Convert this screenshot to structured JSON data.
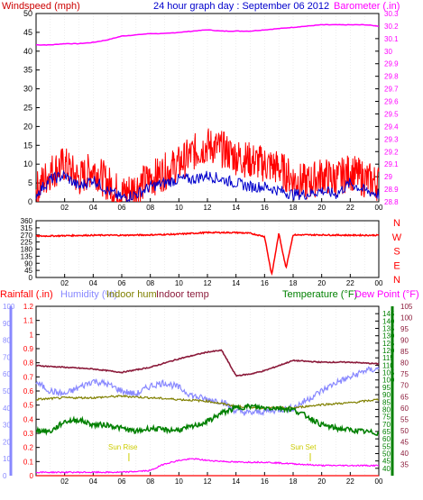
{
  "chart_data": [
    {
      "type": "line",
      "title": "24 hour graph day : September 06 2012",
      "left_axis": {
        "label": "Windspeed (mph)",
        "range": [
          0,
          50
        ],
        "ticks": [
          "0",
          "5",
          "10",
          "15",
          "20",
          "25",
          "30",
          "35",
          "40",
          "45",
          "50"
        ],
        "color": "#ff0000"
      },
      "right_axis": {
        "label": "Barometer (.in)",
        "range": [
          28.8,
          30.3
        ],
        "ticks": [
          "28.8",
          "28.9",
          "29",
          "29.1",
          "29.2",
          "29.3",
          "29.4",
          "29.5",
          "29.6",
          "29.7",
          "29.8",
          "29.9",
          "30",
          "30.1",
          "30.2",
          "30.3"
        ],
        "color": "#ff00ff"
      },
      "x_ticks": [
        "02",
        "04",
        "06",
        "08",
        "10",
        "12",
        "14",
        "16",
        "18",
        "20",
        "22",
        "00"
      ],
      "series": [
        {
          "name": "Windspeed",
          "color": "#ff0000",
          "axis": "left",
          "x": [
            0,
            1,
            2,
            3,
            4,
            5,
            6,
            7,
            8,
            9,
            10,
            11,
            12,
            13,
            14,
            15,
            16,
            17,
            18,
            19,
            20,
            21,
            22,
            23,
            24
          ],
          "values": [
            3,
            8,
            10,
            6,
            9,
            5,
            2,
            4,
            6,
            8,
            10,
            13,
            15,
            14,
            12,
            11,
            10,
            9,
            6,
            5,
            7,
            6,
            8,
            6,
            5
          ]
        },
        {
          "color": "#0000cc",
          "axis": "left",
          "x": [
            0,
            1,
            2,
            3,
            4,
            5,
            6,
            7,
            8,
            9,
            10,
            11,
            12,
            13,
            14,
            15,
            16,
            17,
            18,
            19,
            20,
            21,
            22,
            23,
            24
          ],
          "values": [
            2,
            6,
            7,
            4,
            6,
            3,
            1,
            2,
            4,
            5,
            6,
            6,
            7,
            6,
            5,
            4,
            4,
            3,
            2,
            2,
            3,
            2,
            5,
            3,
            2
          ]
        },
        {
          "name": "Barometer",
          "color": "#ff00ff",
          "axis": "right",
          "x": [
            0,
            1,
            2,
            3,
            4,
            5,
            6,
            7,
            8,
            9,
            10,
            11,
            12,
            13,
            14,
            15,
            16,
            17,
            18,
            19,
            20,
            21,
            22,
            23,
            24
          ],
          "values": [
            30.05,
            30.05,
            30.06,
            30.06,
            30.07,
            30.09,
            30.12,
            30.13,
            30.14,
            30.14,
            30.15,
            30.16,
            30.17,
            30.16,
            30.16,
            30.16,
            30.17,
            30.18,
            30.19,
            30.2,
            30.21,
            30.21,
            30.21,
            30.21,
            30.2
          ]
        }
      ]
    },
    {
      "type": "line",
      "left_axis": {
        "range": [
          0,
          360
        ],
        "ticks": [
          "0",
          "45",
          "90",
          "135",
          "180",
          "225",
          "270",
          "315",
          "360"
        ]
      },
      "right_labels": [
        "N",
        "W",
        "S",
        "E",
        "N"
      ],
      "x_ticks": [
        "02",
        "04",
        "06",
        "08",
        "10",
        "12",
        "14",
        "16",
        "18",
        "20",
        "22",
        "00"
      ],
      "series": [
        {
          "color": "#ff0000",
          "x": [
            0,
            2,
            4,
            6,
            8,
            10,
            12,
            14,
            15,
            16,
            16.5,
            17,
            17.5,
            18,
            20,
            22,
            24
          ],
          "values": [
            262,
            265,
            268,
            268,
            270,
            275,
            285,
            285,
            280,
            260,
            15,
            280,
            60,
            270,
            270,
            268,
            268
          ]
        }
      ]
    },
    {
      "type": "line",
      "headers": [
        "Rainfall (.in)",
        "Humidity (%)",
        "Indoor hum",
        "Indoor temp",
        "Temperature (°F)",
        "Dew Point (°F)"
      ],
      "axes": {
        "humidity_percent": {
          "range": [
            0,
            100
          ],
          "ticks": [
            "0",
            "10",
            "20",
            "30",
            "40",
            "50",
            "60",
            "70",
            "80",
            "90",
            "100"
          ],
          "color": "#8888ff"
        },
        "rainfall_in": {
          "range": [
            0,
            1.2
          ],
          "ticks": [
            "0",
            "0.1",
            "0.2",
            "0.3",
            "0.4",
            "0.5",
            "0.6",
            "0.7",
            "0.8",
            "0.9",
            "1",
            "1.1",
            "1.2"
          ],
          "color": "#ff0000"
        },
        "temperature_f": {
          "range": [
            35,
            150
          ],
          "ticks": [
            "40",
            "45",
            "50",
            "55",
            "60",
            "65",
            "70",
            "75",
            "80",
            "85",
            "90",
            "95",
            "100",
            "105",
            "110",
            "115",
            "120",
            "125",
            "130",
            "135",
            "140",
            "145"
          ],
          "color": "#008000"
        },
        "dew_point_f": {
          "range": [
            30,
            105
          ],
          "ticks": [
            "35",
            "40",
            "45",
            "50",
            "55",
            "60",
            "65",
            "70",
            "75",
            "80",
            "85",
            "90",
            "95",
            "100",
            "105"
          ],
          "color": "#ff00ff"
        }
      },
      "x_ticks": [
        "02",
        "04",
        "06",
        "08",
        "10",
        "12",
        "14",
        "16",
        "18",
        "20",
        "22",
        "00"
      ],
      "annotations": [
        "Sun Rise",
        "Sun Set"
      ],
      "series": [
        {
          "name": "Indoor temp",
          "color": "#8b1a3a",
          "axis": "humidity_percent",
          "x": [
            0,
            2,
            4,
            6,
            8,
            10,
            12,
            13,
            14,
            15,
            16,
            18,
            20,
            22,
            24
          ],
          "values": [
            65,
            64,
            63,
            61,
            64,
            69,
            73,
            74,
            59,
            60,
            62,
            68,
            67,
            67,
            66
          ]
        },
        {
          "name": "Humidity",
          "color": "#8888ff",
          "axis": "humidity_percent",
          "x": [
            0,
            1,
            2,
            3,
            4,
            5,
            6,
            7,
            8,
            9,
            10,
            11,
            12,
            13,
            14,
            15,
            16,
            17,
            18,
            19,
            20,
            21,
            22,
            23,
            24
          ],
          "values": [
            55,
            50,
            48,
            52,
            56,
            54,
            50,
            48,
            53,
            55,
            52,
            47,
            45,
            44,
            38,
            37,
            38,
            39,
            40,
            45,
            50,
            55,
            58,
            62,
            63
          ]
        },
        {
          "name": "Indoor hum",
          "color": "#808000",
          "axis": "humidity_percent",
          "x": [
            0,
            2,
            4,
            6,
            8,
            10,
            12,
            14,
            16,
            18,
            19,
            20,
            22,
            24
          ],
          "values": [
            45,
            46,
            46,
            47,
            46,
            45,
            44,
            41,
            40,
            40,
            41,
            42,
            43,
            45
          ]
        },
        {
          "name": "Temperature",
          "color": "#008000",
          "axis": "humidity_percent",
          "x": [
            0,
            1,
            2,
            3,
            4,
            5,
            6,
            7,
            8,
            9,
            10,
            11,
            12,
            13,
            14,
            15,
            16,
            17,
            18,
            19,
            20,
            21,
            22,
            23,
            24
          ],
          "values": [
            27,
            26,
            32,
            33,
            30,
            30,
            28,
            26,
            28,
            27,
            27,
            29,
            32,
            37,
            40,
            41,
            40,
            40,
            39,
            35,
            30,
            28,
            27,
            26,
            25
          ]
        },
        {
          "name": "Dew Point",
          "color": "#ff00ff",
          "axis": "humidity_percent",
          "x": [
            0,
            2,
            4,
            6,
            8,
            9,
            10,
            11,
            12,
            14,
            16,
            18,
            20,
            22,
            24
          ],
          "values": [
            2,
            2,
            2,
            2,
            3,
            7,
            9,
            10,
            9,
            8,
            8,
            7,
            6,
            6,
            6
          ]
        },
        {
          "name": "Rainfall",
          "color": "#ff0000",
          "axis": "rainfall_in",
          "x": [
            0,
            24
          ],
          "values": [
            0,
            0
          ]
        }
      ]
    }
  ]
}
